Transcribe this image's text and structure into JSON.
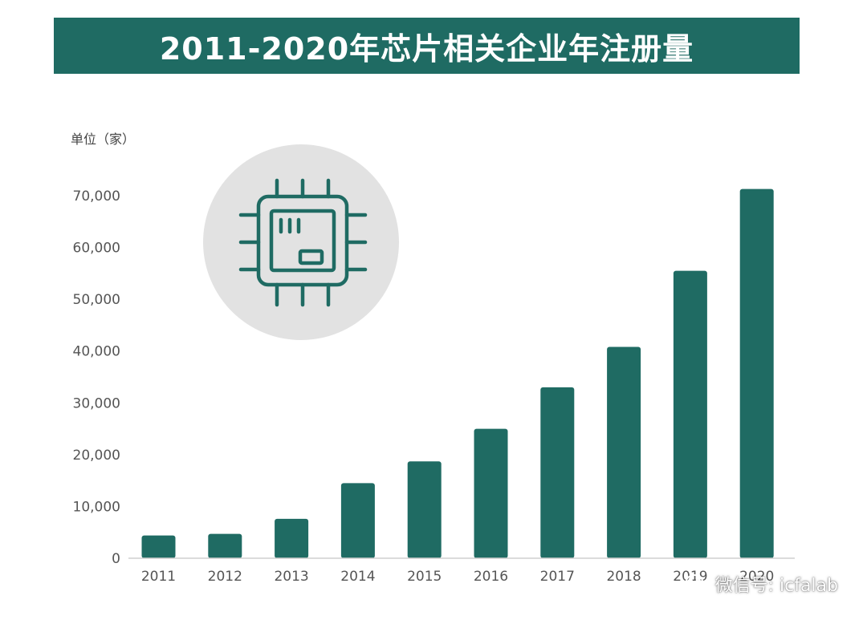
{
  "title": "2011-2020年芯片相关企业年注册量",
  "y_unit": "单位（家）",
  "watermark": {
    "text": "微信号: icfalab",
    "icon": "wechat-icon"
  },
  "illustration": {
    "icon": "chip-icon"
  },
  "colors": {
    "banner": "#1f6b63",
    "bar": "#1f6b63",
    "circle": "#e2e2e2",
    "chip_stroke": "#1f6b63"
  },
  "chart_data": {
    "type": "bar",
    "categories": [
      "2011",
      "2012",
      "2013",
      "2014",
      "2015",
      "2016",
      "2017",
      "2018",
      "2019",
      "2020"
    ],
    "values": [
      4400,
      4700,
      7600,
      14500,
      18700,
      25000,
      33000,
      40800,
      55500,
      71300
    ],
    "ylabel": "单位（家）",
    "ylim": [
      0,
      70000
    ],
    "yticks": [
      0,
      10000,
      20000,
      30000,
      40000,
      50000,
      60000,
      70000
    ],
    "ytick_labels": [
      "0",
      "10,000",
      "20,000",
      "30,000",
      "40,000",
      "50,000",
      "60,000",
      "70,000"
    ],
    "grid": false
  }
}
